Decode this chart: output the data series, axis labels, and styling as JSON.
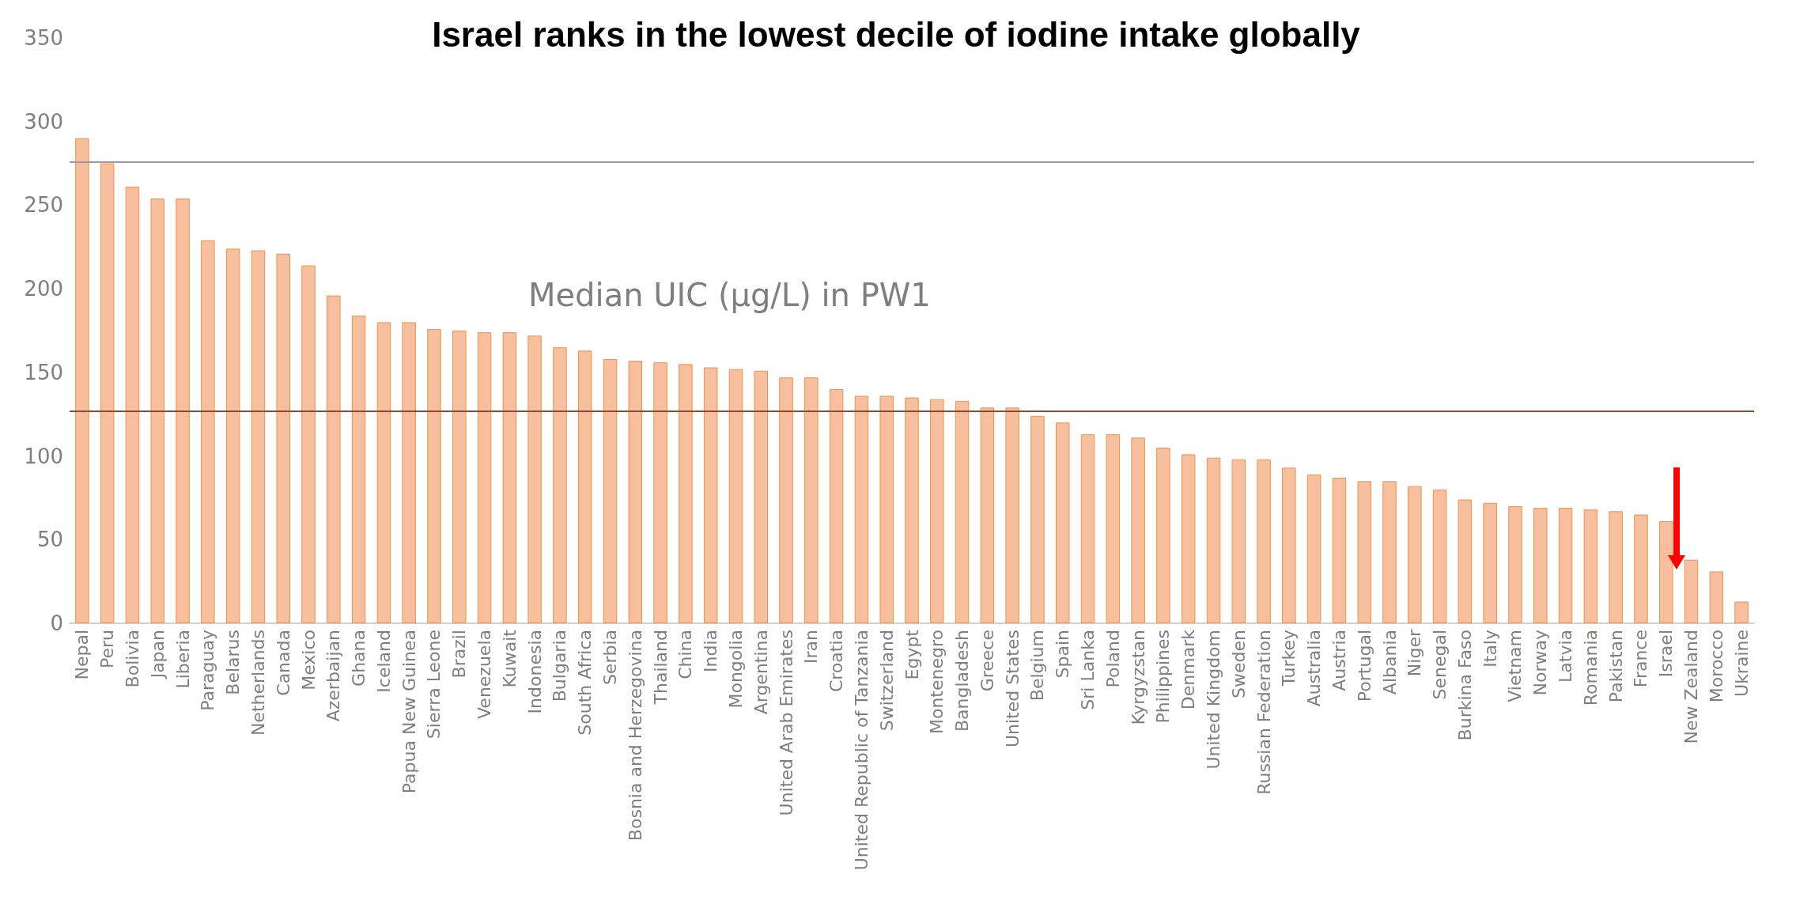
{
  "chart_data": {
    "type": "bar",
    "title": "Israel ranks in the lowest decile of iodine intake globally",
    "annotations": [
      "Median UIC (µg/L) in PW1"
    ],
    "categories": [
      "Nepal",
      "Peru",
      "Bolivia",
      "Japan",
      "Liberia",
      "Paraguay",
      "Belarus",
      "Netherlands",
      "Canada",
      "Mexico",
      "Azerbaijan",
      "Ghana",
      "Iceland",
      "Papua New Guinea",
      "Sierra Leone",
      "Brazil",
      "Venezuela",
      "Kuwait",
      "Indonesia",
      "Bulgaria",
      "South Africa",
      "Serbia",
      "Bosnia and Herzegovina",
      "Thailand",
      "China",
      "India",
      "Mongolia",
      "Argentina",
      "United Arab Emirates",
      "Iran",
      "Croatia",
      "United Republic of Tanzania",
      "Switzerland",
      "Egypt",
      "Montenegro",
      "Bangladesh",
      "Greece",
      "United States",
      "Belgium",
      "Spain",
      "Sri Lanka",
      "Poland",
      "Kyrgyzstan",
      "Philippines",
      "Denmark",
      "United Kingdom",
      "Sweden",
      "Russian Federation",
      "Turkey",
      "Australia",
      "Austria",
      "Portugal",
      "Albania",
      "Niger",
      "Senegal",
      "Burkina Faso",
      "Italy",
      "Vietnam",
      "Norway",
      "Latvia",
      "Romania",
      "Pakistan",
      "France",
      "Israel",
      "New Zealand",
      "Morocco",
      "Ukraine"
    ],
    "values": [
      290,
      275,
      261,
      254,
      254,
      229,
      224,
      223,
      221,
      214,
      196,
      184,
      180,
      180,
      176,
      175,
      174,
      174,
      172,
      165,
      163,
      158,
      157,
      156,
      155,
      153,
      152,
      151,
      147,
      147,
      140,
      136,
      136,
      135,
      134,
      133,
      129,
      129,
      124,
      120,
      113,
      113,
      111,
      105,
      101,
      99,
      98,
      98,
      93,
      89,
      87,
      85,
      85,
      82,
      80,
      74,
      72,
      70,
      69,
      69,
      68,
      67,
      65,
      61,
      38,
      31,
      13
    ],
    "color": "#f8bf9f",
    "ylim": [
      0,
      350
    ],
    "yticks": [
      0,
      50,
      100,
      150,
      200,
      250,
      300,
      350
    ],
    "grid": false,
    "ref_lines": [
      {
        "axis": "y",
        "value": 127,
        "color": "#8b4a32"
      },
      {
        "axis": "y",
        "value": 276,
        "color": "#9a9a9a"
      }
    ]
  }
}
